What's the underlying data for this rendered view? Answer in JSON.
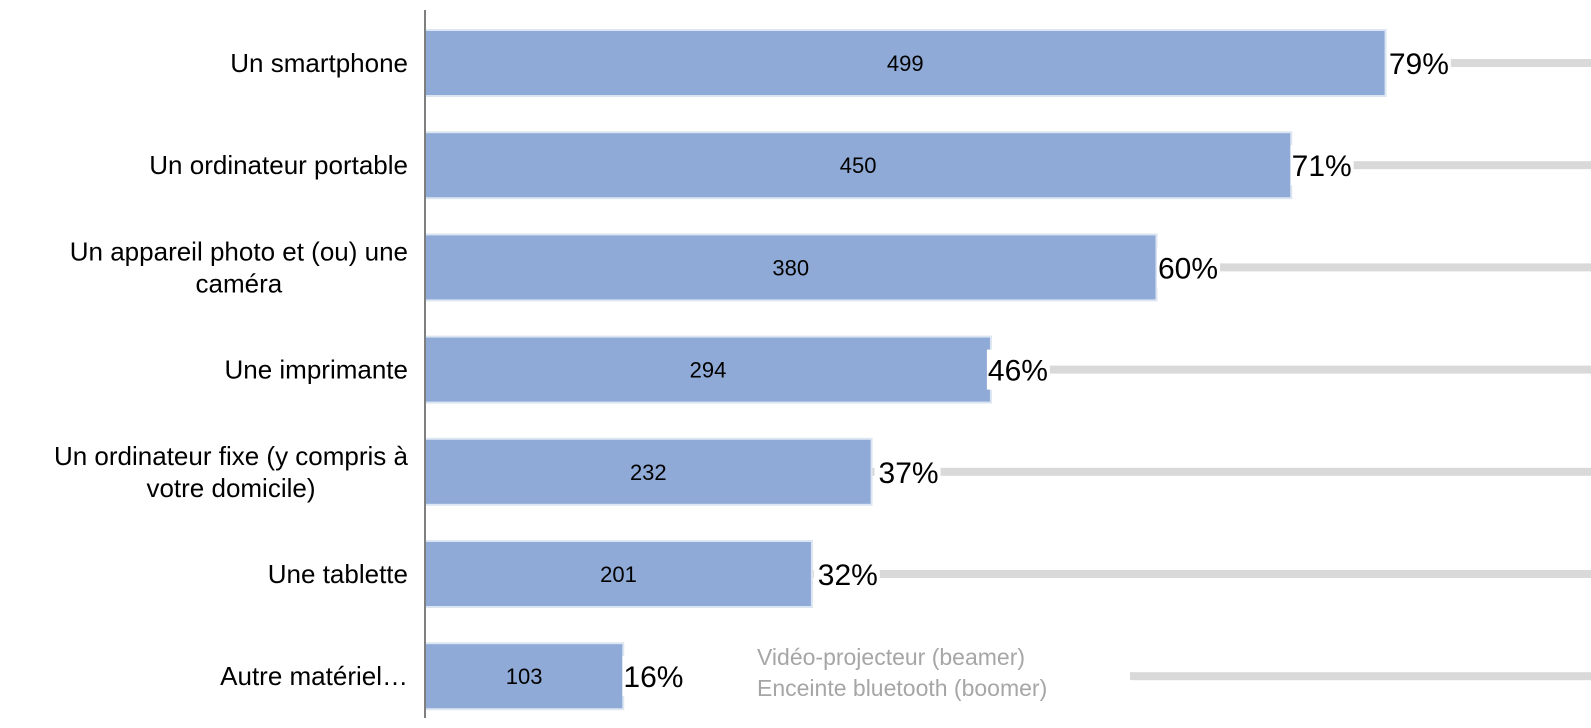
{
  "chart_data": {
    "type": "bar",
    "orientation": "horizontal",
    "categories": [
      "Un smartphone",
      "Un ordinateur portable",
      "Un appareil photo et (ou) une caméra",
      "Une imprimante",
      "Un ordinateur fixe (y compris à votre domicile)",
      "Une tablette",
      "Autre matériel…"
    ],
    "category_lines": [
      [
        "Un smartphone"
      ],
      [
        "Un ordinateur portable"
      ],
      [
        "Un appareil photo et (ou) une",
        "caméra"
      ],
      [
        "Une imprimante"
      ],
      [
        "Un ordinateur fixe (y compris à",
        "votre domicile)"
      ],
      [
        "Une tablette"
      ],
      [
        "Autre matériel…"
      ]
    ],
    "values": [
      499,
      450,
      380,
      294,
      232,
      201,
      103
    ],
    "percentages": [
      79,
      71,
      60,
      46,
      37,
      32,
      16
    ],
    "percent_labels": [
      "79%",
      "71%",
      "60%",
      "46%",
      "37%",
      "32%",
      "16%"
    ],
    "percent_max": 100,
    "xlim": [
      0,
      500
    ],
    "annotations": [
      "Vidéo-projecteur (beamer)",
      "Enceinte bluetooth (boomer)"
    ],
    "legend": "none",
    "grid": false,
    "colors": {
      "bar_fill": "#8faad6",
      "bar_stroke": "#dce6f2",
      "track": "#d9d9d9",
      "axis": "#7f7f7f",
      "annotation": "#a6a6a6"
    }
  }
}
